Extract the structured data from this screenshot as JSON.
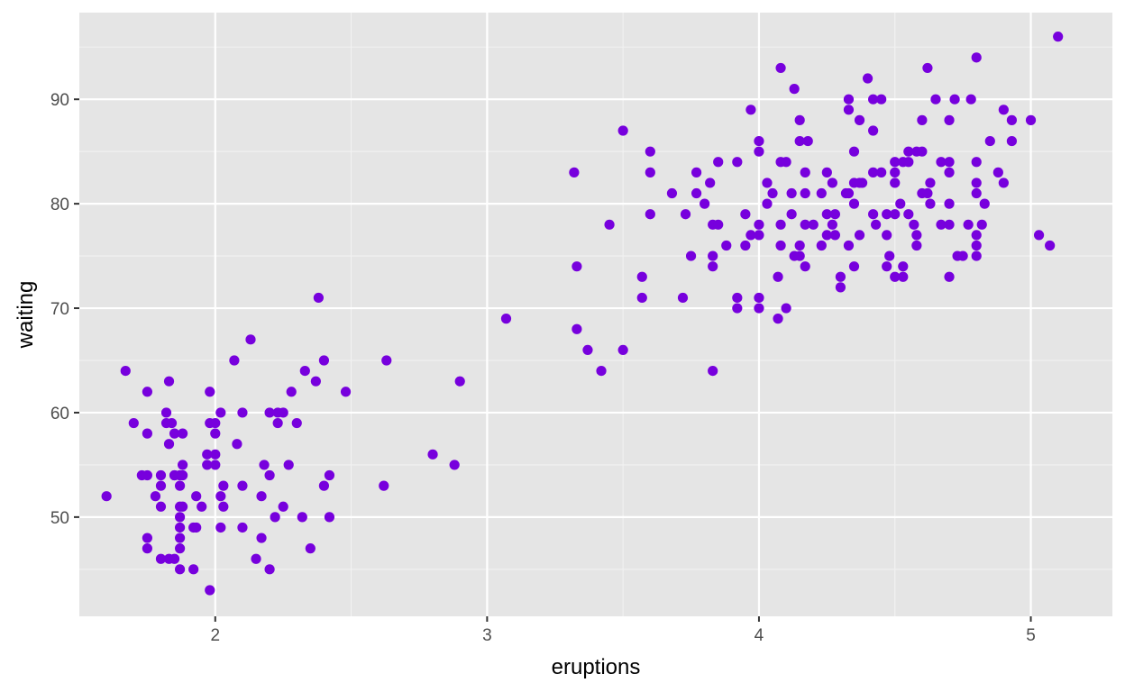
{
  "chart_data": {
    "type": "scatter",
    "title": "",
    "xlabel": "eruptions",
    "ylabel": "waiting",
    "xlim": [
      1.5,
      5.3
    ],
    "ylim": [
      40.5,
      98.3
    ],
    "x_ticks": [
      2,
      3,
      4,
      5
    ],
    "y_ticks": [
      50,
      60,
      70,
      80,
      90
    ],
    "x_tick_labels": [
      "2",
      "3",
      "4",
      "5"
    ],
    "y_tick_labels": [
      "50",
      "60",
      "70",
      "80",
      "90"
    ],
    "grid": true,
    "legend": "none",
    "point_color": "#7700dd",
    "points": [
      [
        1.6,
        52
      ],
      [
        1.67,
        64
      ],
      [
        1.7,
        59
      ],
      [
        1.73,
        54
      ],
      [
        1.75,
        54
      ],
      [
        1.75,
        47
      ],
      [
        1.75,
        48
      ],
      [
        1.75,
        58
      ],
      [
        1.75,
        62
      ],
      [
        1.78,
        52
      ],
      [
        1.8,
        46
      ],
      [
        1.8,
        51
      ],
      [
        1.8,
        53
      ],
      [
        1.8,
        54
      ],
      [
        1.82,
        59
      ],
      [
        1.82,
        60
      ],
      [
        1.83,
        46
      ],
      [
        1.83,
        63
      ],
      [
        1.83,
        57
      ],
      [
        1.84,
        59
      ],
      [
        1.85,
        54
      ],
      [
        1.85,
        46
      ],
      [
        1.85,
        54
      ],
      [
        1.85,
        58
      ],
      [
        1.87,
        54
      ],
      [
        1.87,
        53
      ],
      [
        1.87,
        50
      ],
      [
        1.87,
        49
      ],
      [
        1.87,
        51
      ],
      [
        1.87,
        48
      ],
      [
        1.87,
        47
      ],
      [
        1.87,
        45
      ],
      [
        1.88,
        51
      ],
      [
        1.88,
        55
      ],
      [
        1.88,
        58
      ],
      [
        1.88,
        54
      ],
      [
        1.92,
        49
      ],
      [
        1.92,
        45
      ],
      [
        1.93,
        49
      ],
      [
        1.93,
        52
      ],
      [
        1.95,
        51
      ],
      [
        1.97,
        56
      ],
      [
        1.97,
        55
      ],
      [
        1.98,
        62
      ],
      [
        1.98,
        43
      ],
      [
        1.98,
        59
      ],
      [
        2.0,
        59
      ],
      [
        2.0,
        56
      ],
      [
        2.0,
        55
      ],
      [
        2.0,
        58
      ],
      [
        2.02,
        52
      ],
      [
        2.02,
        60
      ],
      [
        2.02,
        49
      ],
      [
        2.03,
        53
      ],
      [
        2.03,
        51
      ],
      [
        2.07,
        65
      ],
      [
        2.08,
        57
      ],
      [
        2.1,
        53
      ],
      [
        2.1,
        60
      ],
      [
        2.1,
        49
      ],
      [
        2.13,
        67
      ],
      [
        2.15,
        46
      ],
      [
        2.17,
        48
      ],
      [
        2.17,
        52
      ],
      [
        2.18,
        55
      ],
      [
        2.2,
        60
      ],
      [
        2.2,
        54
      ],
      [
        2.2,
        45
      ],
      [
        2.22,
        50
      ],
      [
        2.23,
        60
      ],
      [
        2.23,
        59
      ],
      [
        2.25,
        60
      ],
      [
        2.25,
        51
      ],
      [
        2.27,
        55
      ],
      [
        2.28,
        62
      ],
      [
        2.3,
        59
      ],
      [
        2.32,
        50
      ],
      [
        2.33,
        64
      ],
      [
        2.35,
        47
      ],
      [
        2.37,
        63
      ],
      [
        2.38,
        71
      ],
      [
        2.4,
        53
      ],
      [
        2.4,
        65
      ],
      [
        2.42,
        54
      ],
      [
        2.42,
        50
      ],
      [
        2.48,
        62
      ],
      [
        2.62,
        53
      ],
      [
        2.63,
        65
      ],
      [
        2.8,
        56
      ],
      [
        2.88,
        55
      ],
      [
        2.9,
        63
      ],
      [
        3.07,
        69
      ],
      [
        3.32,
        83
      ],
      [
        3.33,
        74
      ],
      [
        3.33,
        68
      ],
      [
        3.37,
        66
      ],
      [
        3.42,
        64
      ],
      [
        3.45,
        78
      ],
      [
        3.5,
        87
      ],
      [
        3.5,
        66
      ],
      [
        3.57,
        73
      ],
      [
        3.57,
        71
      ],
      [
        3.6,
        85
      ],
      [
        3.6,
        83
      ],
      [
        3.6,
        79
      ],
      [
        3.68,
        81
      ],
      [
        3.72,
        71
      ],
      [
        3.73,
        79
      ],
      [
        3.75,
        75
      ],
      [
        3.77,
        83
      ],
      [
        3.77,
        81
      ],
      [
        3.8,
        80
      ],
      [
        3.82,
        82
      ],
      [
        3.83,
        78
      ],
      [
        3.83,
        75
      ],
      [
        3.83,
        74
      ],
      [
        3.83,
        64
      ],
      [
        3.85,
        84
      ],
      [
        3.85,
        78
      ],
      [
        3.88,
        76
      ],
      [
        3.92,
        84
      ],
      [
        3.92,
        71
      ],
      [
        3.92,
        70
      ],
      [
        3.95,
        76
      ],
      [
        3.95,
        79
      ],
      [
        3.97,
        89
      ],
      [
        3.97,
        77
      ],
      [
        4.0,
        86
      ],
      [
        4.0,
        85
      ],
      [
        4.0,
        78
      ],
      [
        4.0,
        77
      ],
      [
        4.0,
        71
      ],
      [
        4.0,
        70
      ],
      [
        4.03,
        82
      ],
      [
        4.03,
        80
      ],
      [
        4.05,
        81
      ],
      [
        4.07,
        73
      ],
      [
        4.07,
        69
      ],
      [
        4.08,
        93
      ],
      [
        4.08,
        84
      ],
      [
        4.08,
        78
      ],
      [
        4.08,
        76
      ],
      [
        4.1,
        84
      ],
      [
        4.1,
        70
      ],
      [
        4.12,
        81
      ],
      [
        4.12,
        79
      ],
      [
        4.13,
        91
      ],
      [
        4.13,
        75
      ],
      [
        4.15,
        88
      ],
      [
        4.15,
        86
      ],
      [
        4.15,
        76
      ],
      [
        4.15,
        75
      ],
      [
        4.17,
        83
      ],
      [
        4.17,
        81
      ],
      [
        4.17,
        78
      ],
      [
        4.17,
        74
      ],
      [
        4.18,
        86
      ],
      [
        4.2,
        78
      ],
      [
        4.23,
        81
      ],
      [
        4.23,
        76
      ],
      [
        4.25,
        83
      ],
      [
        4.25,
        79
      ],
      [
        4.25,
        77
      ],
      [
        4.27,
        82
      ],
      [
        4.27,
        78
      ],
      [
        4.28,
        79
      ],
      [
        4.28,
        77
      ],
      [
        4.3,
        73
      ],
      [
        4.3,
        72
      ],
      [
        4.32,
        81
      ],
      [
        4.33,
        90
      ],
      [
        4.33,
        89
      ],
      [
        4.33,
        81
      ],
      [
        4.33,
        76
      ],
      [
        4.35,
        85
      ],
      [
        4.35,
        82
      ],
      [
        4.35,
        80
      ],
      [
        4.35,
        74
      ],
      [
        4.37,
        88
      ],
      [
        4.37,
        82
      ],
      [
        4.37,
        77
      ],
      [
        4.38,
        82
      ],
      [
        4.4,
        92
      ],
      [
        4.42,
        90
      ],
      [
        4.42,
        87
      ],
      [
        4.42,
        83
      ],
      [
        4.42,
        79
      ],
      [
        4.43,
        78
      ],
      [
        4.45,
        90
      ],
      [
        4.45,
        83
      ],
      [
        4.47,
        79
      ],
      [
        4.47,
        77
      ],
      [
        4.47,
        74
      ],
      [
        4.48,
        75
      ],
      [
        4.5,
        84
      ],
      [
        4.5,
        83
      ],
      [
        4.5,
        82
      ],
      [
        4.5,
        79
      ],
      [
        4.5,
        73
      ],
      [
        4.52,
        80
      ],
      [
        4.53,
        84
      ],
      [
        4.53,
        73
      ],
      [
        4.53,
        74
      ],
      [
        4.55,
        85
      ],
      [
        4.55,
        84
      ],
      [
        4.55,
        79
      ],
      [
        4.57,
        78
      ],
      [
        4.58,
        77
      ],
      [
        4.58,
        85
      ],
      [
        4.58,
        76
      ],
      [
        4.6,
        85
      ],
      [
        4.6,
        88
      ],
      [
        4.6,
        81
      ],
      [
        4.62,
        93
      ],
      [
        4.62,
        81
      ],
      [
        4.63,
        82
      ],
      [
        4.63,
        80
      ],
      [
        4.65,
        90
      ],
      [
        4.67,
        84
      ],
      [
        4.67,
        78
      ],
      [
        4.7,
        88
      ],
      [
        4.7,
        84
      ],
      [
        4.7,
        83
      ],
      [
        4.7,
        80
      ],
      [
        4.7,
        78
      ],
      [
        4.7,
        73
      ],
      [
        4.72,
        90
      ],
      [
        4.73,
        75
      ],
      [
        4.75,
        75
      ],
      [
        4.77,
        78
      ],
      [
        4.78,
        90
      ],
      [
        4.8,
        94
      ],
      [
        4.8,
        84
      ],
      [
        4.8,
        82
      ],
      [
        4.8,
        81
      ],
      [
        4.8,
        77
      ],
      [
        4.8,
        76
      ],
      [
        4.8,
        75
      ],
      [
        4.82,
        78
      ],
      [
        4.83,
        80
      ],
      [
        4.85,
        86
      ],
      [
        4.88,
        83
      ],
      [
        4.9,
        89
      ],
      [
        4.9,
        82
      ],
      [
        4.93,
        88
      ],
      [
        4.93,
        86
      ],
      [
        5.0,
        88
      ],
      [
        5.03,
        77
      ],
      [
        5.07,
        76
      ],
      [
        5.1,
        96
      ]
    ]
  }
}
